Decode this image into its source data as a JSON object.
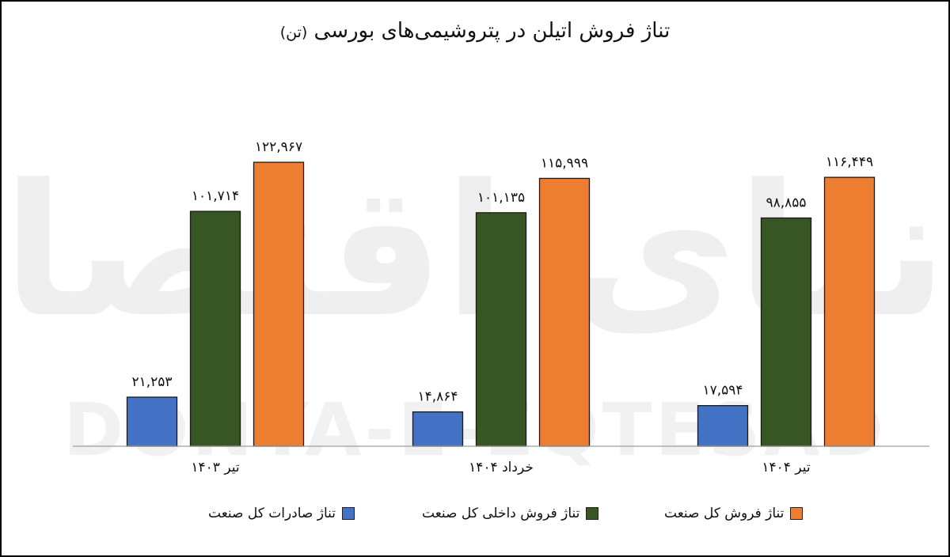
{
  "title": "تناژ فروش اتیلن در پتروشیمی‌های بورسی",
  "title_unit": "(تن)",
  "watermark": {
    "brand_logo": "دنیای اقتصاد",
    "brand_latin": "DONYA-E-EQTESAD"
  },
  "colors": {
    "export": "#4472C4",
    "domestic": "#375623",
    "total": "#ED7D31"
  },
  "chart_data": {
    "type": "bar",
    "title": "تناژ فروش اتیلن در پتروشیمی‌های بورسی (تن)",
    "categories": [
      "تیر ۱۴۰۳",
      "خرداد ۱۴۰۴",
      "تیر ۱۴۰۴"
    ],
    "series": [
      {
        "name": "تناژ صادرات کل صنعت",
        "values": [
          21253,
          14864,
          17594
        ],
        "labels": [
          "۲۱,۲۵۳",
          "۱۴,۸۶۴",
          "۱۷,۵۹۴"
        ],
        "color": "#4472C4"
      },
      {
        "name": "تناژ فروش داخلی کل صنعت",
        "values": [
          101714,
          101135,
          98855
        ],
        "labels": [
          "۱۰۱,۷۱۴",
          "۱۰۱,۱۳۵",
          "۹۸,۸۵۵"
        ],
        "color": "#375623"
      },
      {
        "name": "تناژ فروش کل صنعت",
        "values": [
          122967,
          115999,
          116449
        ],
        "labels": [
          "۱۲۲,۹۶۷",
          "۱۱۵,۹۹۹",
          "۱۱۶,۴۴۹"
        ],
        "color": "#ED7D31"
      }
    ],
    "ylim": [
      0,
      135000
    ],
    "grid": false,
    "legend_position": "bottom",
    "xlabel": "",
    "ylabel": ""
  }
}
